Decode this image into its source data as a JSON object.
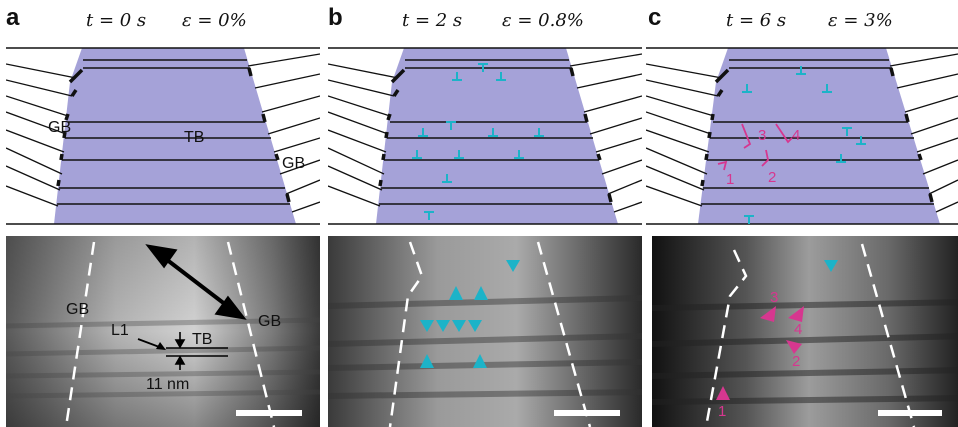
{
  "panels": [
    {
      "letter": "a",
      "time_label": "t = 0 s",
      "strain_label": "ε = 0%",
      "schematic_labels": {
        "gb_left": "GB",
        "tb": "TB",
        "gb_right": "GB"
      },
      "tem_labels": {
        "gb_left": "GB",
        "gb_right": "GB",
        "l1": "L1",
        "tb": "TB",
        "spacing": "11 nm"
      }
    },
    {
      "letter": "b",
      "time_label": "t = 2 s",
      "strain_label": "ε = 0.8%"
    },
    {
      "letter": "c",
      "time_label": "t = 6 s",
      "strain_label": "ε = 3%",
      "dislocation_numbers": [
        "1",
        "2",
        "3",
        "4"
      ]
    }
  ],
  "colors": {
    "grain_fill": "#a5a2d8",
    "dislocation_cyan": "#1cb3c8",
    "marker_magenta": "#d6378f",
    "boundary_dark": "#111111"
  }
}
